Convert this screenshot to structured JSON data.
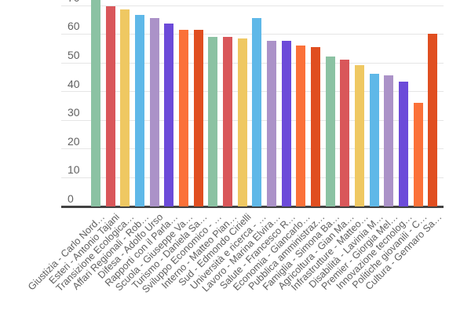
{
  "chart_data": {
    "type": "bar",
    "title": "",
    "xlabel": "",
    "ylabel": "",
    "yticks": [
      0,
      10,
      20,
      30,
      40,
      50,
      60,
      70
    ],
    "ylim": [
      0,
      70
    ],
    "grid": true,
    "legend": "none",
    "first_bar_clipped_at_top": true,
    "categories": [
      "Giustizia - Carlo Nord…",
      "Esteri - Antonio Tajani",
      "Transizione Ecologica…",
      "Affari Regionali - Rob…",
      "Difesa - Adolfo Urso",
      "Rapporti con il Parla…",
      "Scuola - Giuseppe Va…",
      "Turismo - Daniela Sa…",
      "Sviluppo Economico - …",
      "Interno - Matteo Pian…",
      "Sud - Edmondo Cirielli",
      "Università e ricerca - …",
      "Lavoro - Marina Elvira…",
      "Salute - Francesco R…",
      "Economia - Giancarlo…",
      "Pubblica amministraz…",
      "Famiglia - Simona Ba…",
      "Agricoltura - Gian Ma…",
      "Infrastrutture - Matteo…",
      "Disabilità - Lavinia M…",
      "Premier - Giorgia Mel…",
      "Innovazione tecnolog…",
      "Politiche giovanili - C…",
      "Cultura - Gennaro Sa…"
    ],
    "values": [
      72,
      69.5,
      68.5,
      66.5,
      65.5,
      63.5,
      61.5,
      61.5,
      59,
      59,
      58.5,
      65.5,
      57.5,
      57.5,
      56,
      55.5,
      52,
      51,
      49,
      46,
      45.5,
      43.5,
      36,
      60
    ],
    "palette": [
      "#8BC2A3",
      "#D9575A",
      "#EFC862",
      "#5FB8E8",
      "#AB92C8",
      "#6C4BD9",
      "#FB7139",
      "#E04E20"
    ],
    "colors": {
      "axis_line": "#424242",
      "gridline": "#e6e6e6",
      "tick_label": "#616161",
      "category_label": "#5e5e5e",
      "background": "#ffffff"
    }
  }
}
